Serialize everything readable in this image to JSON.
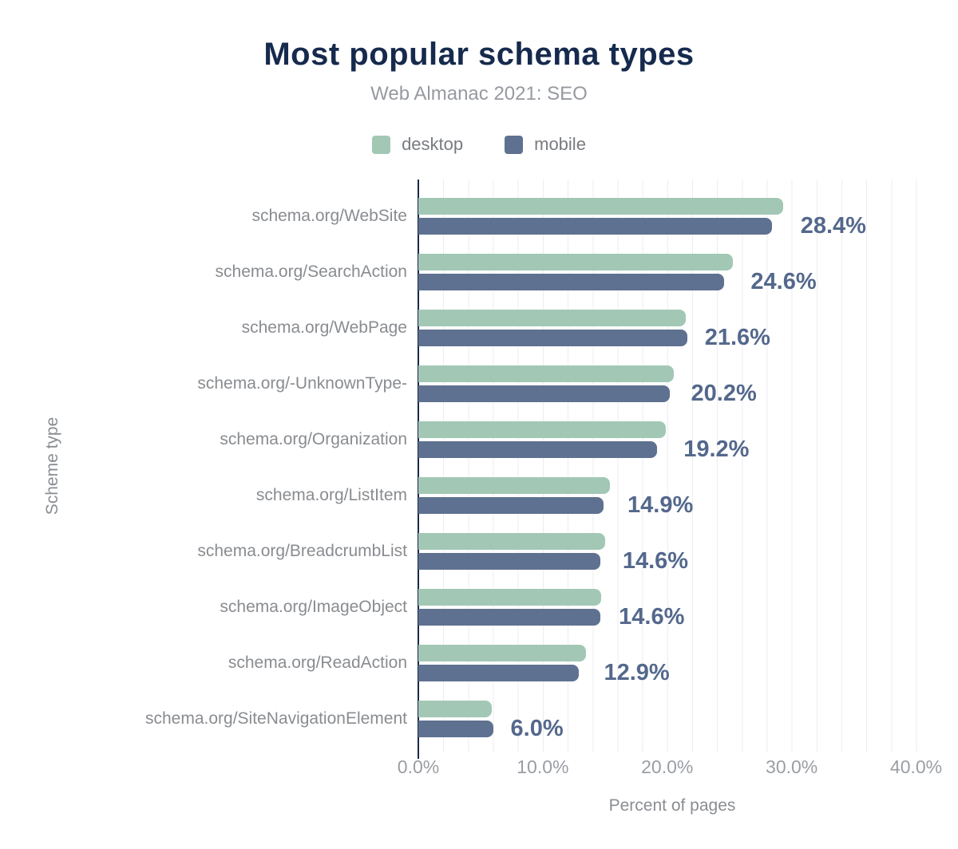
{
  "title": "Most popular schema types",
  "subtitle": "Web Almanac 2021: SEO",
  "legend": [
    {
      "label": "desktop",
      "color": "#a2c8b5"
    },
    {
      "label": "mobile",
      "color": "#5f7190"
    }
  ],
  "colors": {
    "desktop_bar": "#a2c8b5",
    "mobile_bar": "#5f7190",
    "value_label": "#54688c",
    "title": "#162a4d",
    "axis_line": "#1a2946",
    "gridline": "#ededf1",
    "category_label": "#898c90",
    "tick_label": "#9a9ea4"
  },
  "chart_data": {
    "type": "bar",
    "orientation": "horizontal",
    "title": "Most popular schema types",
    "subtitle": "Web Almanac 2021: SEO",
    "xlabel": "Percent of pages",
    "ylabel": "Scheme type",
    "legend_position": "top",
    "grid": "vertical minor gridlines every 2%",
    "xlim": [
      0,
      40.8
    ],
    "x_ticks": [
      "0.0%",
      "10.0%",
      "20.0%",
      "30.0%",
      "40.0%"
    ],
    "x_tick_values": [
      0,
      10,
      20,
      30,
      40
    ],
    "categories": [
      "schema.org/WebSite",
      "schema.org/SearchAction",
      "schema.org/WebPage",
      "schema.org/-UnknownType-",
      "schema.org/Organization",
      "schema.org/ListItem",
      "schema.org/BreadcrumbList",
      "schema.org/ImageObject",
      "schema.org/ReadAction",
      "schema.org/SiteNavigationElement"
    ],
    "series": [
      {
        "name": "desktop",
        "color": "#a2c8b5",
        "values": [
          29.3,
          25.3,
          21.5,
          20.5,
          19.9,
          15.4,
          15.0,
          14.7,
          13.5,
          5.9
        ]
      },
      {
        "name": "mobile",
        "color": "#5f7190",
        "values": [
          28.4,
          24.6,
          21.6,
          20.2,
          19.2,
          14.9,
          14.6,
          14.6,
          12.9,
          6.0
        ]
      }
    ],
    "data_labels": [
      "28.4%",
      "24.6%",
      "21.6%",
      "20.2%",
      "19.2%",
      "14.9%",
      "14.6%",
      "14.6%",
      "12.9%",
      "6.0%"
    ]
  }
}
